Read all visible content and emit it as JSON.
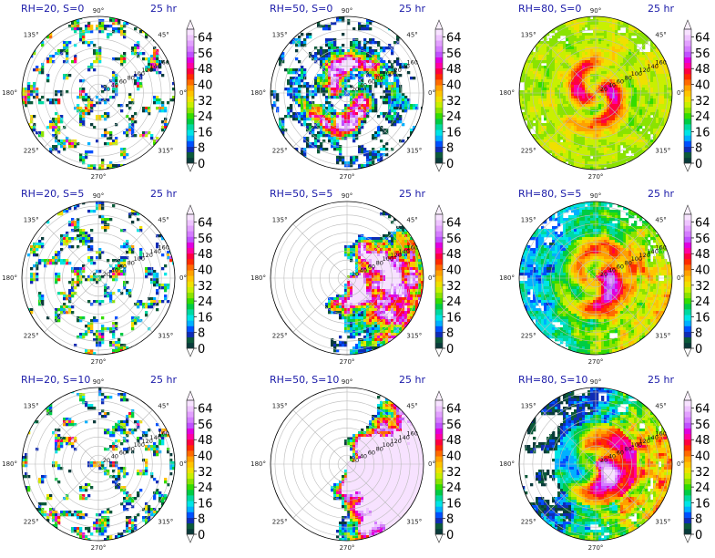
{
  "chart_data": {
    "type": "heatmap",
    "projection": "polar",
    "colorbar": {
      "ticks": [
        0,
        8,
        16,
        24,
        32,
        40,
        48,
        56,
        64
      ],
      "range": [
        0,
        68
      ],
      "extend": "both",
      "colors": [
        "#0a3b3b",
        "#0b5a3a",
        "#0f2cb5",
        "#0050ff",
        "#00b0ff",
        "#00e5e5",
        "#00d9a0",
        "#00cc44",
        "#33dd00",
        "#8ae300",
        "#c8f000",
        "#f0e000",
        "#ffc400",
        "#ffa000",
        "#ff6a00",
        "#ff2a00",
        "#ff0040",
        "#ff00a0",
        "#e000e0",
        "#c050ff",
        "#d47cff",
        "#e2a0ff",
        "#eec4ff",
        "#f7e2ff"
      ]
    },
    "angular_ticks": [
      "90°",
      "45°",
      "0°",
      "315°",
      "270°",
      "225°",
      "180°",
      "135°"
    ],
    "radial_ticks": [
      20,
      40,
      60,
      80,
      100,
      120,
      140,
      160
    ],
    "panels": [
      {
        "title": "RH=20, S=0",
        "time": "25 hr",
        "rh": 20,
        "shear": 0
      },
      {
        "title": "RH=50, S=0",
        "time": "25 hr",
        "rh": 50,
        "shear": 0
      },
      {
        "title": "RH=80, S=0",
        "time": "25 hr",
        "rh": 80,
        "shear": 0
      },
      {
        "title": "RH=20, S=5",
        "time": "25 hr",
        "rh": 20,
        "shear": 5
      },
      {
        "title": "RH=50, S=5",
        "time": "25 hr",
        "rh": 50,
        "shear": 5
      },
      {
        "title": "RH=80, S=5",
        "time": "25 hr",
        "rh": 80,
        "shear": 5
      },
      {
        "title": "RH=20, S=10",
        "time": "25 hr",
        "rh": 20,
        "shear": 10
      },
      {
        "title": "RH=50, S=10",
        "time": "25 hr",
        "rh": 50,
        "shear": 10
      },
      {
        "title": "RH=80, S=10",
        "time": "25 hr",
        "rh": 80,
        "shear": 10
      }
    ]
  }
}
